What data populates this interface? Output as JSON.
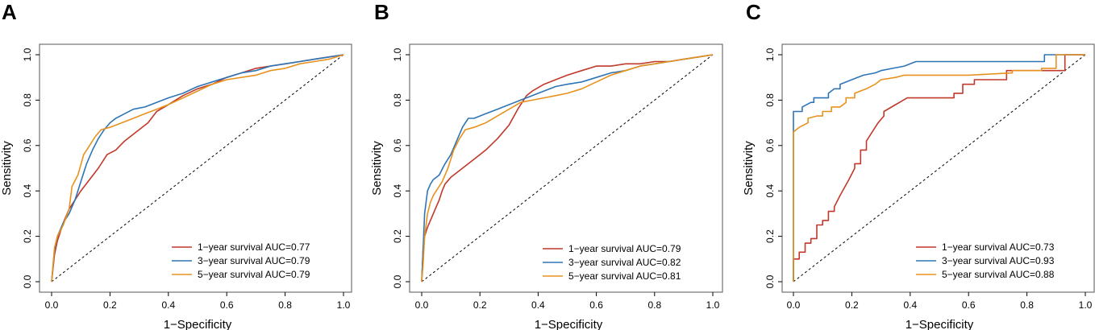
{
  "colors": {
    "one_year": "#C0392B",
    "three_year": "#2E75B6",
    "five_year": "#E8921E",
    "diagonal": "#000000",
    "frame": "#555555"
  },
  "chart_data": [
    {
      "panel": "A",
      "type": "line",
      "xlabel": "1−Specificity",
      "ylabel": "Sensitivity",
      "xlim": [
        0,
        1
      ],
      "ylim": [
        0,
        1
      ],
      "xticks": [
        "0.0",
        "0.2",
        "0.4",
        "0.6",
        "0.8",
        "1.0"
      ],
      "yticks": [
        "0.0",
        "0.2",
        "0.4",
        "0.6",
        "0.8",
        "1.0"
      ],
      "legend_position": "bottom-right",
      "series": [
        {
          "name": "1−year survival AUC=0.77",
          "color_key": "one_year",
          "x": [
            0,
            0.01,
            0.02,
            0.04,
            0.06,
            0.08,
            0.1,
            0.13,
            0.16,
            0.19,
            0.22,
            0.25,
            0.3,
            0.33,
            0.36,
            0.4,
            0.45,
            0.5,
            0.55,
            0.6,
            0.65,
            0.7,
            0.75,
            0.8,
            0.85,
            0.9,
            0.95,
            1.0
          ],
          "y": [
            0,
            0.12,
            0.18,
            0.26,
            0.32,
            0.36,
            0.4,
            0.45,
            0.5,
            0.56,
            0.58,
            0.62,
            0.67,
            0.7,
            0.75,
            0.78,
            0.82,
            0.85,
            0.87,
            0.9,
            0.92,
            0.94,
            0.95,
            0.96,
            0.97,
            0.98,
            0.99,
            1.0
          ]
        },
        {
          "name": "3−year survival AUC=0.79",
          "color_key": "three_year",
          "x": [
            0,
            0.01,
            0.02,
            0.04,
            0.06,
            0.08,
            0.1,
            0.12,
            0.14,
            0.16,
            0.18,
            0.2,
            0.22,
            0.25,
            0.28,
            0.32,
            0.36,
            0.4,
            0.45,
            0.5,
            0.55,
            0.6,
            0.65,
            0.7,
            0.75,
            0.8,
            0.85,
            0.9,
            0.95,
            1.0
          ],
          "y": [
            0,
            0.14,
            0.2,
            0.26,
            0.3,
            0.36,
            0.44,
            0.52,
            0.58,
            0.63,
            0.67,
            0.7,
            0.72,
            0.74,
            0.76,
            0.77,
            0.79,
            0.81,
            0.83,
            0.86,
            0.88,
            0.9,
            0.92,
            0.93,
            0.95,
            0.96,
            0.97,
            0.98,
            0.99,
            1.0
          ]
        },
        {
          "name": "5−year survival AUC=0.79",
          "color_key": "five_year",
          "x": [
            0,
            0.01,
            0.02,
            0.04,
            0.06,
            0.07,
            0.09,
            0.11,
            0.13,
            0.15,
            0.17,
            0.2,
            0.24,
            0.28,
            0.32,
            0.36,
            0.4,
            0.45,
            0.5,
            0.55,
            0.6,
            0.65,
            0.7,
            0.75,
            0.8,
            0.85,
            0.9,
            0.95,
            1.0
          ],
          "y": [
            0,
            0.15,
            0.2,
            0.25,
            0.32,
            0.42,
            0.47,
            0.56,
            0.6,
            0.64,
            0.67,
            0.68,
            0.7,
            0.72,
            0.74,
            0.76,
            0.78,
            0.81,
            0.84,
            0.87,
            0.89,
            0.9,
            0.91,
            0.93,
            0.94,
            0.96,
            0.97,
            0.98,
            1.0
          ]
        }
      ]
    },
    {
      "panel": "B",
      "type": "line",
      "xlabel": "1−Specificity",
      "ylabel": "Sensitivity",
      "xlim": [
        0,
        1
      ],
      "ylim": [
        0,
        1
      ],
      "xticks": [
        "0.0",
        "0.2",
        "0.4",
        "0.6",
        "0.8",
        "1.0"
      ],
      "yticks": [
        "0.0",
        "0.2",
        "0.4",
        "0.6",
        "0.8",
        "1.0"
      ],
      "legend_position": "bottom-right",
      "series": [
        {
          "name": "1−year survival AUC=0.79",
          "color_key": "one_year",
          "x": [
            0,
            0.005,
            0.01,
            0.02,
            0.03,
            0.04,
            0.05,
            0.06,
            0.07,
            0.08,
            0.1,
            0.12,
            0.15,
            0.18,
            0.22,
            0.26,
            0.3,
            0.33,
            0.36,
            0.38,
            0.42,
            0.46,
            0.5,
            0.55,
            0.6,
            0.65,
            0.7,
            0.75,
            0.8,
            0.85,
            0.9,
            0.95,
            1.0
          ],
          "y": [
            0,
            0.15,
            0.2,
            0.24,
            0.27,
            0.3,
            0.33,
            0.36,
            0.4,
            0.43,
            0.46,
            0.48,
            0.51,
            0.54,
            0.58,
            0.63,
            0.69,
            0.76,
            0.82,
            0.84,
            0.87,
            0.89,
            0.91,
            0.93,
            0.95,
            0.95,
            0.96,
            0.96,
            0.97,
            0.97,
            0.98,
            0.99,
            1.0
          ]
        },
        {
          "name": "3−year survival AUC=0.82",
          "color_key": "three_year",
          "x": [
            0,
            0.005,
            0.01,
            0.02,
            0.03,
            0.04,
            0.06,
            0.08,
            0.1,
            0.12,
            0.14,
            0.15,
            0.16,
            0.18,
            0.22,
            0.26,
            0.3,
            0.34,
            0.38,
            0.42,
            0.46,
            0.5,
            0.55,
            0.6,
            0.65,
            0.7,
            0.75,
            0.8,
            0.85,
            0.9,
            0.95,
            1.0
          ],
          "y": [
            0,
            0.15,
            0.3,
            0.4,
            0.43,
            0.45,
            0.47,
            0.52,
            0.56,
            0.62,
            0.68,
            0.7,
            0.72,
            0.72,
            0.74,
            0.76,
            0.78,
            0.8,
            0.82,
            0.84,
            0.86,
            0.87,
            0.88,
            0.9,
            0.92,
            0.93,
            0.95,
            0.96,
            0.97,
            0.98,
            0.99,
            1.0
          ]
        },
        {
          "name": "5−year survival AUC=0.81",
          "color_key": "five_year",
          "x": [
            0,
            0.005,
            0.01,
            0.02,
            0.03,
            0.04,
            0.05,
            0.07,
            0.09,
            0.11,
            0.13,
            0.15,
            0.18,
            0.22,
            0.26,
            0.3,
            0.34,
            0.38,
            0.42,
            0.46,
            0.5,
            0.55,
            0.6,
            0.65,
            0.7,
            0.75,
            0.8,
            0.85,
            0.9,
            0.95,
            1.0
          ],
          "y": [
            0,
            0.08,
            0.2,
            0.3,
            0.35,
            0.38,
            0.4,
            0.44,
            0.5,
            0.58,
            0.63,
            0.67,
            0.68,
            0.7,
            0.73,
            0.76,
            0.79,
            0.8,
            0.81,
            0.82,
            0.83,
            0.85,
            0.88,
            0.91,
            0.93,
            0.95,
            0.96,
            0.97,
            0.98,
            0.99,
            1.0
          ]
        }
      ]
    },
    {
      "panel": "C",
      "type": "line",
      "xlabel": "1−Specificity",
      "ylabel": "Sensitivity",
      "xlim": [
        0,
        1
      ],
      "ylim": [
        0,
        1
      ],
      "xticks": [
        "0.0",
        "0.2",
        "0.4",
        "0.6",
        "0.8",
        "1.0"
      ],
      "yticks": [
        "0.0",
        "0.2",
        "0.4",
        "0.6",
        "0.8",
        "1.0"
      ],
      "legend_position": "bottom-right",
      "series": [
        {
          "name": "1−year survival AUC=0.73",
          "color_key": "one_year",
          "x": [
            0,
            0,
            0.02,
            0.02,
            0.04,
            0.04,
            0.06,
            0.06,
            0.08,
            0.08,
            0.1,
            0.1,
            0.12,
            0.12,
            0.14,
            0.14,
            0.16,
            0.19,
            0.21,
            0.21,
            0.23,
            0.23,
            0.25,
            0.25,
            0.29,
            0.29,
            0.31,
            0.31,
            0.35,
            0.39,
            0.52,
            0.55,
            0.55,
            0.58,
            0.58,
            0.62,
            0.62,
            0.73,
            0.73,
            0.93,
            0.93,
            1.0
          ],
          "y": [
            0,
            0.1,
            0.1,
            0.13,
            0.13,
            0.17,
            0.17,
            0.19,
            0.19,
            0.25,
            0.25,
            0.27,
            0.27,
            0.31,
            0.31,
            0.33,
            0.38,
            0.45,
            0.5,
            0.52,
            0.52,
            0.58,
            0.58,
            0.62,
            0.7,
            0.7,
            0.73,
            0.75,
            0.78,
            0.81,
            0.81,
            0.81,
            0.83,
            0.83,
            0.87,
            0.87,
            0.89,
            0.89,
            0.93,
            0.93,
            1.0,
            1.0
          ]
        },
        {
          "name": "3−year survival AUC=0.93",
          "color_key": "three_year",
          "x": [
            0,
            0,
            0.02,
            0.03,
            0.03,
            0.06,
            0.07,
            0.07,
            0.12,
            0.12,
            0.14,
            0.16,
            0.16,
            0.2,
            0.24,
            0.28,
            0.3,
            0.34,
            0.38,
            0.4,
            0.42,
            0.44,
            0.6,
            0.86,
            0.86,
            1.0
          ],
          "y": [
            0,
            0.75,
            0.75,
            0.75,
            0.77,
            0.79,
            0.79,
            0.81,
            0.81,
            0.83,
            0.85,
            0.85,
            0.87,
            0.89,
            0.91,
            0.92,
            0.93,
            0.94,
            0.95,
            0.96,
            0.97,
            0.97,
            0.97,
            0.97,
            1.0,
            1.0
          ]
        },
        {
          "name": "5−year survival AUC=0.88",
          "color_key": "five_year",
          "x": [
            0,
            0,
            0.02,
            0.05,
            0.05,
            0.08,
            0.1,
            0.1,
            0.13,
            0.13,
            0.16,
            0.18,
            0.18,
            0.21,
            0.21,
            0.25,
            0.28,
            0.3,
            0.35,
            0.38,
            0.4,
            0.45,
            0.6,
            0.75,
            0.75,
            0.85,
            0.85,
            0.9,
            0.9,
            1.0
          ],
          "y": [
            0,
            0.66,
            0.68,
            0.7,
            0.72,
            0.73,
            0.73,
            0.75,
            0.75,
            0.77,
            0.77,
            0.79,
            0.81,
            0.81,
            0.83,
            0.85,
            0.87,
            0.89,
            0.9,
            0.91,
            0.91,
            0.91,
            0.91,
            0.92,
            0.93,
            0.93,
            0.94,
            0.94,
            1.0,
            1.0
          ]
        }
      ]
    }
  ]
}
